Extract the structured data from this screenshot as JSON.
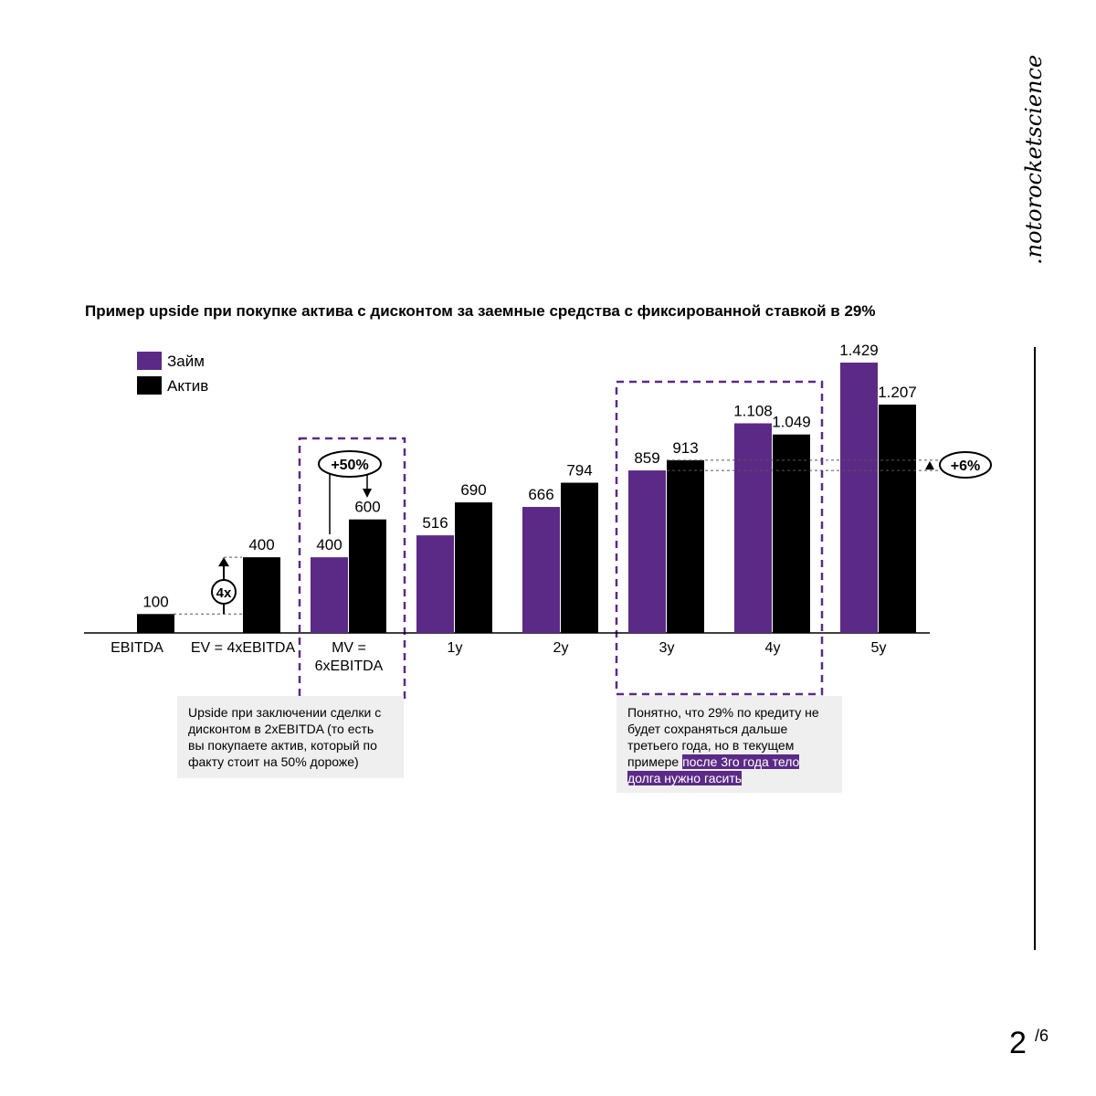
{
  "chart_data": {
    "type": "bar",
    "title": "Пример upside при покупке актива с дисконтом за заемные средства с фиксированной ставкой в 29%",
    "categories": [
      "EBITDA",
      "EV = 4xEBITDA",
      "MV = 6xEBITDA",
      "1y",
      "2y",
      "3y",
      "4y",
      "5y"
    ],
    "series": [
      {
        "name": "Займ",
        "color": "#5b2a86",
        "values": [
          null,
          null,
          400,
          516,
          666,
          859,
          1108,
          1429
        ],
        "value_labels": [
          null,
          null,
          "400",
          "516",
          "666",
          "859",
          "1.108",
          "1.429"
        ]
      },
      {
        "name": "Актив",
        "color": "#000000",
        "values": [
          100,
          400,
          600,
          690,
          794,
          913,
          1049,
          1207
        ],
        "value_labels": [
          "100",
          "400",
          "600",
          "690",
          "794",
          "913",
          "1.049",
          "1.207"
        ]
      }
    ],
    "ylim": [
      0,
      1500
    ],
    "annotations": {
      "ratio": "4x",
      "mv_upside": "+50%",
      "gap": "+6%",
      "note_left": "Upside при заключении сделки с дисконтом в 2xEBITDA (то есть вы покупаете актив, который по факту стоит на 50% дороже)",
      "note_right": "Понятно, что 29% по кредиту не будет сохраняться дальше третьего года, но в текущем примере",
      "note_right_highlight": "после 3го года тело долга нужно гасить"
    }
  },
  "brand": ".notorocketscience",
  "page": {
    "number": "2",
    "total": "/6"
  }
}
